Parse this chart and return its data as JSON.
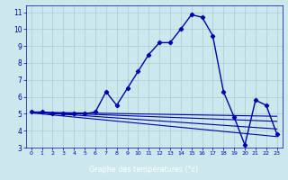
{
  "title": "Graphe des températures (°c)",
  "bg_color": "#cce8ec",
  "line_color": "#0000aa",
  "xlim": [
    -0.5,
    23.5
  ],
  "ylim": [
    3,
    11.4
  ],
  "xticks": [
    0,
    1,
    2,
    3,
    4,
    5,
    6,
    7,
    8,
    9,
    10,
    11,
    12,
    13,
    14,
    15,
    16,
    17,
    18,
    19,
    20,
    21,
    22,
    23
  ],
  "yticks": [
    3,
    4,
    5,
    6,
    7,
    8,
    9,
    10,
    11
  ],
  "main_curve_x": [
    0,
    1,
    2,
    3,
    4,
    5,
    6,
    7,
    8,
    9,
    10,
    11,
    12,
    13,
    14,
    15,
    16,
    17,
    18,
    19,
    20,
    21,
    22,
    23
  ],
  "main_curve_y": [
    5.1,
    5.1,
    5.0,
    5.0,
    5.0,
    5.0,
    5.1,
    6.3,
    5.5,
    6.5,
    7.5,
    8.5,
    9.2,
    9.2,
    10.0,
    10.85,
    10.7,
    9.6,
    6.3,
    4.8,
    3.15,
    5.8,
    5.5,
    3.8
  ],
  "line2_x": [
    0,
    23
  ],
  "line2_y": [
    5.1,
    4.85
  ],
  "line3_x": [
    0,
    23
  ],
  "line3_y": [
    5.1,
    4.55
  ],
  "line4_x": [
    0,
    23
  ],
  "line4_y": [
    5.1,
    4.1
  ],
  "line5_x": [
    0,
    23
  ],
  "line5_y": [
    5.05,
    3.65
  ]
}
